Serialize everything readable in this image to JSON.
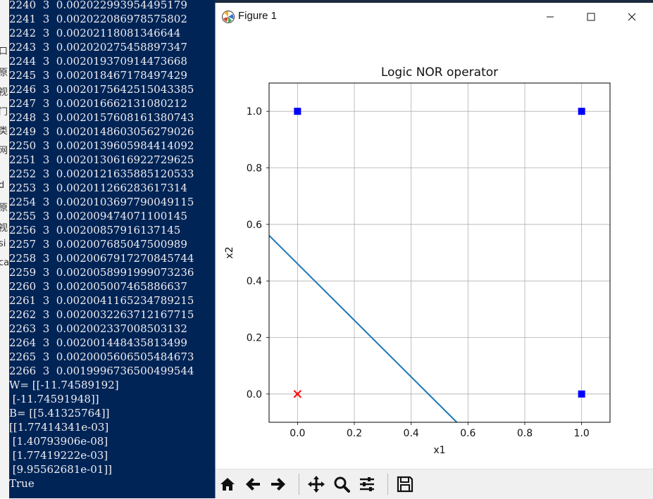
{
  "behind_chars": [
    "口",
    "原",
    "视",
    "门",
    "类",
    "网",
    "d",
    "原",
    "视",
    "si",
    "ca",
    "",
    "",
    ""
  ],
  "console": {
    "lines": [
      "2240  3  0.002022993954495179",
      "2241  3  0.002022086978575802",
      "2242  3  0.00202118081346644",
      "2243  3  0.002020275458897347",
      "2244  3  0.002019370914473668",
      "2245  3  0.002018467178497429",
      "2246  3  0.0020175642515043385",
      "2247  3  0.002016662131080212",
      "2248  3  0.0020157608161380743",
      "2249  3  0.0020148603056279026",
      "2250  3  0.0020139605984414092",
      "2251  3  0.0020130616922729625",
      "2252  3  0.0020121635885120533",
      "2253  3  0.002011266283617314",
      "2254  3  0.0020103697790049115",
      "2255  3  0.002009474071100145",
      "2256  3  0.00200857916137145",
      "2257  3  0.002007685047500989",
      "2258  3  0.0020067917270845744",
      "2259  3  0.0020058991999073236",
      "2260  3  0.002005007465886637",
      "2261  3  0.0020041165234789215",
      "2262  3  0.0020032263712167715",
      "2263  3  0.002002337008503132",
      "2264  3  0.002001448435813499",
      "2265  3  0.0020005606505484673",
      "2266  3  0.0019996736500499544",
      "W= [[-11.74589192]",
      " [-11.74591948]]",
      "B= [[5.41325764]]",
      "[[1.77414341e-03]",
      " [1.40793906e-08]",
      " [1.77419222e-03]",
      " [9.95562681e-01]]",
      "True"
    ]
  },
  "window": {
    "title": "Figure 1",
    "controls": {
      "minimize": "minimize-icon",
      "maximize": "maximize-icon",
      "close": "close-icon"
    }
  },
  "toolbar": {
    "buttons": [
      "home-icon",
      "back-arrow-icon",
      "forward-arrow-icon",
      "pan-move-icon",
      "zoom-magnifier-icon",
      "configure-subplots-icon",
      "save-floppy-icon"
    ]
  },
  "chart_data": {
    "type": "scatter",
    "title": "Logic NOR operator",
    "xlabel": "x1",
    "ylabel": "x2",
    "xlim": [
      -0.1,
      1.1
    ],
    "ylim": [
      -0.1,
      1.1
    ],
    "xticks": [
      "0.0",
      "0.2",
      "0.4",
      "0.6",
      "0.8",
      "1.0"
    ],
    "yticks": [
      "0.0",
      "0.2",
      "0.4",
      "0.6",
      "0.8",
      "1.0"
    ],
    "grid": true,
    "series": [
      {
        "marker": "square",
        "color": "#0000ff",
        "points": [
          [
            0,
            1
          ],
          [
            1,
            1
          ],
          [
            1,
            0
          ]
        ]
      },
      {
        "marker": "x",
        "color": "#ff0000",
        "points": [
          [
            0,
            0
          ]
        ]
      },
      {
        "marker": "line",
        "color": "#1f77b4",
        "points": [
          [
            -0.1,
            0.5608
          ],
          [
            0.5608,
            -0.1
          ]
        ]
      }
    ]
  }
}
